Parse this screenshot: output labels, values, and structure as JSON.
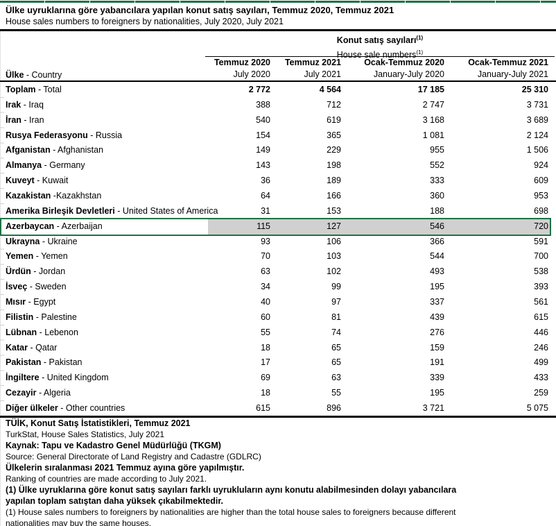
{
  "colors": {
    "accent_green": "#1F7245",
    "selection_fill": "#D1CFCF",
    "rule_black": "#000000",
    "gridline_gray": "#E2E2E2"
  },
  "title": {
    "tr": "Ülke uyruklarına göre yabancılara yapılan konut satış sayıları, Temmuz 2020, Temmuz 2021",
    "en": "House sales numbers to foreigners by nationalities, July 2020, July 2021"
  },
  "table": {
    "group_header": {
      "tr": "Konut satış sayıları",
      "en": "House sale numbers",
      "note_marker": "(1)"
    },
    "row_header": {
      "tr": "Ülke",
      "en": " - Country"
    },
    "columns": [
      {
        "tr": "Temmuz 2020",
        "en": "July 2020"
      },
      {
        "tr": "Temmuz 2021",
        "en": "July 2021"
      },
      {
        "tr": "Ocak-Temmuz 2020",
        "en": "January-July 2020"
      },
      {
        "tr": "Ocak-Temmuz 2021",
        "en": "January-July 2021"
      }
    ],
    "rows": [
      {
        "tr": "Toplam",
        "sep": " - ",
        "en": "Total",
        "values": [
          "2 772",
          "4 564",
          "17 185",
          "25 310"
        ],
        "bold_values": true,
        "selected": false
      },
      {
        "tr": "Irak",
        "sep": " - ",
        "en": "Iraq",
        "values": [
          "388",
          "712",
          "2 747",
          "3 731"
        ],
        "bold_values": false,
        "selected": false
      },
      {
        "tr": "İran",
        "sep": " - ",
        "en": "Iran",
        "values": [
          "540",
          "619",
          "3 168",
          "3 689"
        ],
        "bold_values": false,
        "selected": false
      },
      {
        "tr": "Rusya Federasyonu",
        "sep": " - ",
        "en": "Russia",
        "values": [
          "154",
          "365",
          "1 081",
          "2 124"
        ],
        "bold_values": false,
        "selected": false
      },
      {
        "tr": "Afganistan",
        "sep": " - ",
        "en": "Afghanistan",
        "values": [
          "149",
          "229",
          "955",
          "1 506"
        ],
        "bold_values": false,
        "selected": false
      },
      {
        "tr": "Almanya",
        "sep": " - ",
        "en": "Germany",
        "values": [
          "143",
          "198",
          "552",
          "924"
        ],
        "bold_values": false,
        "selected": false
      },
      {
        "tr": "Kuveyt",
        "sep": " - ",
        "en": "Kuwait",
        "values": [
          "36",
          "189",
          "333",
          "609"
        ],
        "bold_values": false,
        "selected": false
      },
      {
        "tr": "Kazakistan",
        "sep": " -",
        "en": "Kazakhstan",
        "values": [
          "64",
          "166",
          "360",
          "953"
        ],
        "bold_values": false,
        "selected": false
      },
      {
        "tr": "Amerika Birleşik Devletleri",
        "sep": " - ",
        "en": "United States of America",
        "values": [
          "31",
          "153",
          "188",
          "698"
        ],
        "bold_values": false,
        "selected": false
      },
      {
        "tr": "Azerbaycan",
        "sep": " - ",
        "en": "Azerbaijan",
        "values": [
          "115",
          "127",
          "546",
          "720"
        ],
        "bold_values": false,
        "selected": true
      },
      {
        "tr": "Ukrayna",
        "sep": " - ",
        "en": "Ukraine",
        "values": [
          "93",
          "106",
          "366",
          "591"
        ],
        "bold_values": false,
        "selected": false
      },
      {
        "tr": "Yemen",
        "sep": " - ",
        "en": "Yemen",
        "values": [
          "70",
          "103",
          "544",
          "700"
        ],
        "bold_values": false,
        "selected": false
      },
      {
        "tr": "Ürdün",
        "sep": " - ",
        "en": "Jordan",
        "values": [
          "63",
          "102",
          "493",
          "538"
        ],
        "bold_values": false,
        "selected": false
      },
      {
        "tr": "İsveç",
        "sep": " - ",
        "en": "Sweden",
        "values": [
          "34",
          "99",
          "195",
          "393"
        ],
        "bold_values": false,
        "selected": false
      },
      {
        "tr": "Mısır",
        "sep": " - ",
        "en": "Egypt",
        "values": [
          "40",
          "97",
          "337",
          "561"
        ],
        "bold_values": false,
        "selected": false
      },
      {
        "tr": "Filistin",
        "sep": " - ",
        "en": "Palestine",
        "values": [
          "60",
          "81",
          "439",
          "615"
        ],
        "bold_values": false,
        "selected": false
      },
      {
        "tr": "Lübnan",
        "sep": " - ",
        "en": "Lebenon",
        "values": [
          "55",
          "74",
          "276",
          "446"
        ],
        "bold_values": false,
        "selected": false
      },
      {
        "tr": "Katar",
        "sep": " - ",
        "en": "Qatar",
        "values": [
          "18",
          "65",
          "159",
          "246"
        ],
        "bold_values": false,
        "selected": false
      },
      {
        "tr": "Pakistan",
        "sep": " - ",
        "en": "Pakistan",
        "values": [
          "17",
          "65",
          "191",
          "499"
        ],
        "bold_values": false,
        "selected": false
      },
      {
        "tr": "İngiltere",
        "sep": " - ",
        "en": "United Kingdom",
        "values": [
          "69",
          "63",
          "339",
          "433"
        ],
        "bold_values": false,
        "selected": false
      },
      {
        "tr": "Cezayir",
        "sep": " - ",
        "en": "Algeria",
        "values": [
          "18",
          "55",
          "195",
          "259"
        ],
        "bold_values": false,
        "selected": false
      },
      {
        "tr": "Diğer ülkeler",
        "sep": " - ",
        "en": "Other countries",
        "values": [
          "615",
          "896",
          "3 721",
          "5 075"
        ],
        "bold_values": false,
        "selected": false
      }
    ]
  },
  "footnotes": [
    {
      "text": "TÜİK, Konut Satış İstatistikleri, Temmuz 2021",
      "bold": true
    },
    {
      "text": "TurkStat, House Sales Statistics, July 2021",
      "bold": false
    },
    {
      "text": "Kaynak: Tapu ve Kadastro Genel Müdürlüğü (TKGM)",
      "bold": true
    },
    {
      "text": "Source: General Directorate of Land Registry and Cadastre (GDLRC)",
      "bold": false
    },
    {
      "text": "Ülkelerin sıralanması 2021 Temmuz ayına göre yapılmıştır.",
      "bold": true
    },
    {
      "text": "Ranking of countries are made according to July 2021.",
      "bold": false
    },
    {
      "text": "(1) Ülke uyruklarına göre konut satış sayıları farklı uyrukluların aynı konutu alabilmesinden dolayı yabancılara",
      "bold": true
    },
    {
      "text": "yapılan toplam satıştan daha  yüksek çıkabilmektedir.",
      "bold": true
    },
    {
      "text": "(1) House sales numbers to foreigners by nationalities are higher than the total house sales to foreigners because different",
      "bold": false
    },
    {
      "text": "nationalities may buy the same houses.",
      "bold": false
    }
  ]
}
